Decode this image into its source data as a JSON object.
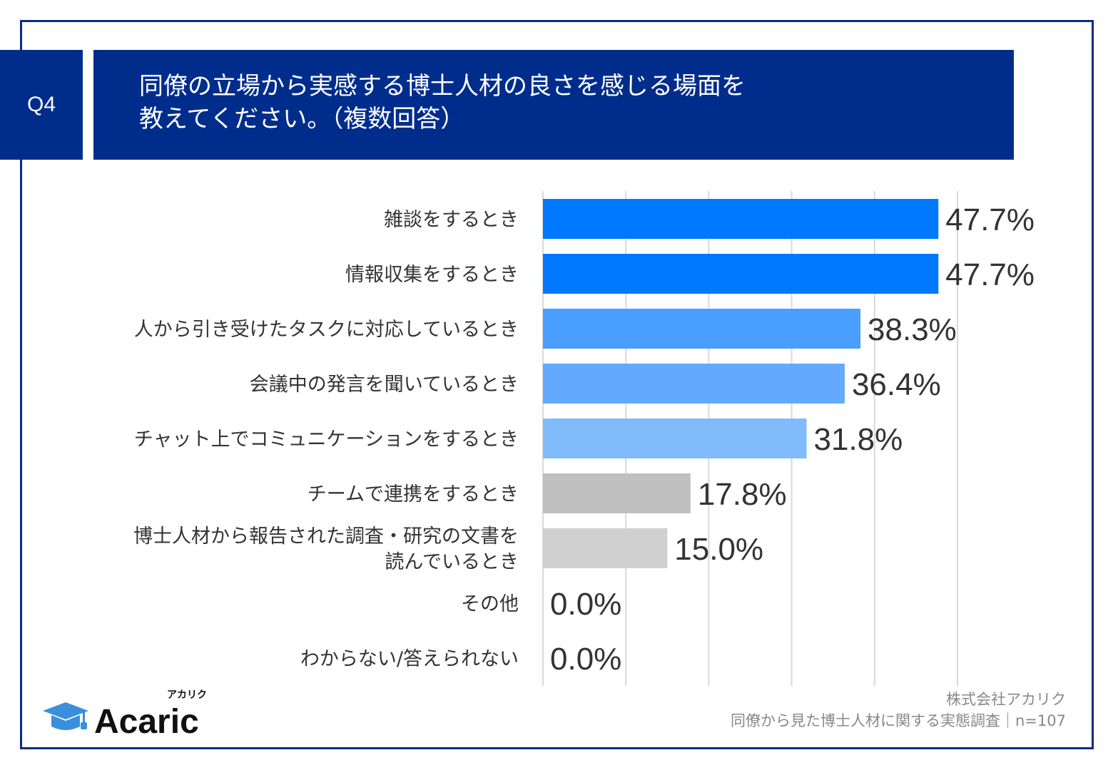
{
  "question": {
    "label": "Q4",
    "title_lines": [
      "同僚の立場から実感する博士人材の良さを感じる場面を",
      "教えてください。（複数回答）"
    ]
  },
  "chart_data": {
    "type": "bar",
    "orientation": "horizontal",
    "categories": [
      [
        "雑談をするとき"
      ],
      [
        "情報収集をするとき"
      ],
      [
        "人から引き受けたタスクに対応しているとき"
      ],
      [
        "会議中の発言を聞いているとき"
      ],
      [
        "チャット上でコミュニケーションをするとき"
      ],
      [
        "チームで連携をするとき"
      ],
      [
        "博士人材から報告された調査・研究の文書を",
        "読んでいるとき"
      ],
      [
        "その他"
      ],
      [
        "わからない/答えられない"
      ]
    ],
    "values": [
      47.7,
      47.7,
      38.3,
      36.4,
      31.8,
      17.8,
      15.0,
      0.0,
      0.0
    ],
    "data_labels": [
      "47.7%",
      "47.7%",
      "38.3%",
      "36.4%",
      "31.8%",
      "17.8%",
      "15.0%",
      "0.0%",
      "0.0%"
    ],
    "colors": [
      "#0078ff",
      "#0078ff",
      "#4a9eff",
      "#63aaff",
      "#80bbfb",
      "#bfbfbf",
      "#d0d0d0",
      "#d0d0d0",
      "#d0d0d0"
    ],
    "xlim": [
      0,
      50
    ],
    "grid": true,
    "unit": "%"
  },
  "footer": {
    "company": "株式会社アカリク",
    "survey": "同僚から見た博士人材に関する実態調査｜n=107"
  },
  "logo": {
    "text": "Acaric",
    "kana": "アカリク",
    "color": "#3a8fdc"
  }
}
